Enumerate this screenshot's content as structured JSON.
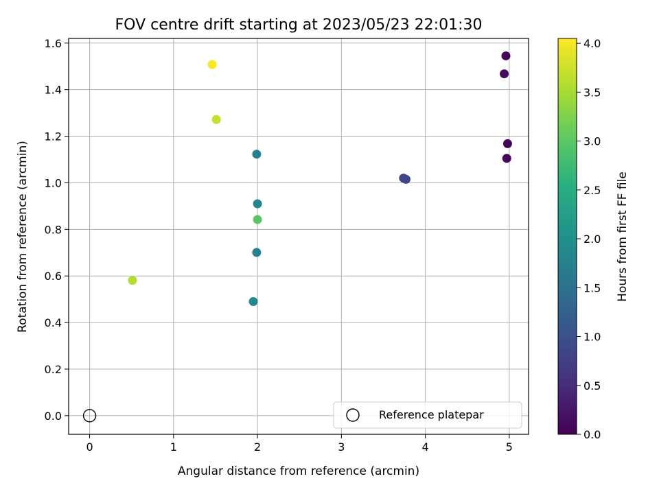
{
  "chart_data": {
    "type": "scatter",
    "title": "FOV centre drift starting at 2023/05/23 22:01:30",
    "xlabel": "Angular distance from reference (arcmin)",
    "ylabel": "Rotation from reference (arcmin)",
    "xlim": [
      -0.25,
      5.23
    ],
    "ylim": [
      -0.08,
      1.62
    ],
    "xticks": [
      0,
      1,
      2,
      3,
      4,
      5
    ],
    "yticks": [
      0.0,
      0.2,
      0.4,
      0.6,
      0.8,
      1.0,
      1.2,
      1.4,
      1.6
    ],
    "grid": true,
    "legend": {
      "position": "lower-right",
      "entries": [
        "Reference platepar"
      ]
    },
    "colorbar": {
      "label": "Hours from first FF file",
      "range": [
        0.0,
        4.05
      ],
      "ticks": [
        0.0,
        0.5,
        1.0,
        1.5,
        2.0,
        2.5,
        3.0,
        3.5,
        4.0
      ],
      "colormap": "viridis"
    },
    "reference_point": {
      "x": 0,
      "y": 0,
      "name": "Reference platepar"
    },
    "points": [
      {
        "x": 4.96,
        "y": 1.545,
        "hours": 0.05
      },
      {
        "x": 4.94,
        "y": 1.468,
        "hours": 0.1
      },
      {
        "x": 4.98,
        "y": 1.168,
        "hours": 0.02
      },
      {
        "x": 4.97,
        "y": 1.105,
        "hours": 0.05
      },
      {
        "x": 3.74,
        "y": 1.02,
        "hours": 0.82
      },
      {
        "x": 3.77,
        "y": 1.015,
        "hours": 0.85
      },
      {
        "x": 1.99,
        "y": 1.123,
        "hours": 1.75
      },
      {
        "x": 2.0,
        "y": 0.91,
        "hours": 1.85
      },
      {
        "x": 2.0,
        "y": 0.842,
        "hours": 3.0
      },
      {
        "x": 1.99,
        "y": 0.701,
        "hours": 1.8
      },
      {
        "x": 1.95,
        "y": 0.49,
        "hours": 1.9
      },
      {
        "x": 0.51,
        "y": 0.581,
        "hours": 3.6
      },
      {
        "x": 1.51,
        "y": 1.272,
        "hours": 3.7
      },
      {
        "x": 1.46,
        "y": 1.508,
        "hours": 4.05
      }
    ]
  }
}
